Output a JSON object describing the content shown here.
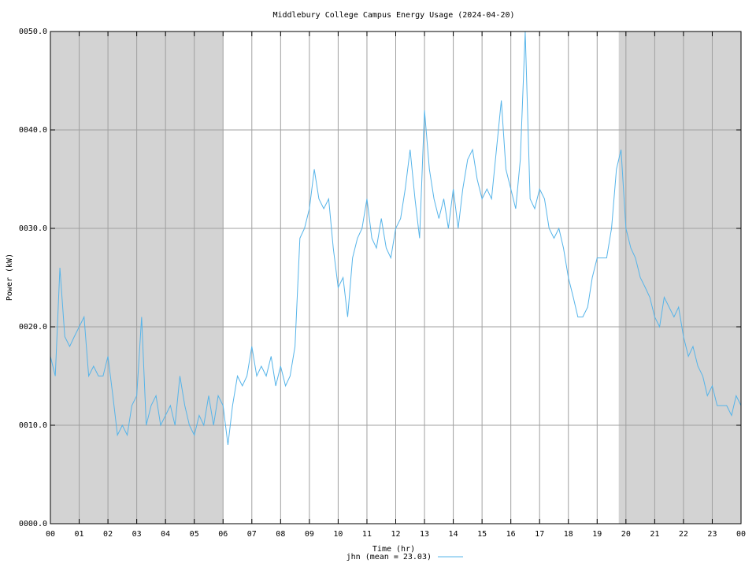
{
  "chart_data": {
    "type": "line",
    "title": "Middlebury College Campus Energy Usage (2024-04-20)",
    "x_label": "Time (hr)",
    "y_label": "Power (kW)",
    "xlim": [
      0,
      24
    ],
    "ylim": [
      0,
      50
    ],
    "xticks": [
      {
        "value": 0,
        "label": "00"
      },
      {
        "value": 1,
        "label": "01"
      },
      {
        "value": 2,
        "label": "02"
      },
      {
        "value": 3,
        "label": "03"
      },
      {
        "value": 4,
        "label": "04"
      },
      {
        "value": 5,
        "label": "05"
      },
      {
        "value": 6,
        "label": "06"
      },
      {
        "value": 7,
        "label": "07"
      },
      {
        "value": 8,
        "label": "08"
      },
      {
        "value": 9,
        "label": "09"
      },
      {
        "value": 10,
        "label": "10"
      },
      {
        "value": 11,
        "label": "11"
      },
      {
        "value": 12,
        "label": "12"
      },
      {
        "value": 13,
        "label": "13"
      },
      {
        "value": 14,
        "label": "14"
      },
      {
        "value": 15,
        "label": "15"
      },
      {
        "value": 16,
        "label": "16"
      },
      {
        "value": 17,
        "label": "17"
      },
      {
        "value": 18,
        "label": "18"
      },
      {
        "value": 19,
        "label": "19"
      },
      {
        "value": 20,
        "label": "20"
      },
      {
        "value": 21,
        "label": "21"
      },
      {
        "value": 22,
        "label": "22"
      },
      {
        "value": 23,
        "label": "23"
      },
      {
        "value": 24,
        "label": "00"
      }
    ],
    "yticks": [
      {
        "value": 0,
        "label": "0000.0"
      },
      {
        "value": 10,
        "label": "0010.0"
      },
      {
        "value": 20,
        "label": "0020.0"
      },
      {
        "value": 30,
        "label": "0030.0"
      },
      {
        "value": 40,
        "label": "0040.0"
      },
      {
        "value": 50,
        "label": "0050.0"
      }
    ],
    "grid": true,
    "grid_color": "#a0a0a0",
    "shade_color": "#d3d3d3",
    "shaded_ranges": [
      [
        0,
        6
      ],
      [
        19.75,
        24
      ]
    ],
    "legend": "bottom",
    "x": [
      0,
      0.17,
      0.33,
      0.5,
      0.67,
      0.83,
      1,
      1.17,
      1.33,
      1.5,
      1.67,
      1.83,
      2,
      2.17,
      2.33,
      2.5,
      2.67,
      2.83,
      3,
      3.17,
      3.33,
      3.5,
      3.67,
      3.83,
      4,
      4.17,
      4.33,
      4.5,
      4.67,
      4.83,
      5,
      5.17,
      5.33,
      5.5,
      5.67,
      5.83,
      6,
      6.17,
      6.33,
      6.5,
      6.67,
      6.83,
      7,
      7.17,
      7.33,
      7.5,
      7.67,
      7.83,
      8,
      8.17,
      8.33,
      8.5,
      8.67,
      8.83,
      9,
      9.17,
      9.33,
      9.5,
      9.67,
      9.83,
      10,
      10.17,
      10.33,
      10.5,
      10.67,
      10.83,
      11,
      11.17,
      11.33,
      11.5,
      11.67,
      11.83,
      12,
      12.17,
      12.33,
      12.5,
      12.67,
      12.83,
      13,
      13.17,
      13.33,
      13.5,
      13.67,
      13.83,
      14,
      14.17,
      14.33,
      14.5,
      14.67,
      14.83,
      15,
      15.17,
      15.33,
      15.5,
      15.67,
      15.83,
      16,
      16.17,
      16.33,
      16.5,
      16.67,
      16.83,
      17,
      17.17,
      17.33,
      17.5,
      17.67,
      17.83,
      18,
      18.17,
      18.33,
      18.5,
      18.67,
      18.83,
      19,
      19.17,
      19.33,
      19.5,
      19.67,
      19.83,
      20,
      20.17,
      20.33,
      20.5,
      20.67,
      20.83,
      21,
      21.17,
      21.33,
      21.5,
      21.67,
      21.83,
      22,
      22.17,
      22.33,
      22.5,
      22.67,
      22.83,
      23,
      23.17,
      23.33,
      23.5,
      23.67,
      23.83,
      24
    ],
    "series": [
      {
        "name": "jhn (mean = 23.03)",
        "color": "#56b4e9",
        "values": [
          17,
          15,
          26,
          19,
          18,
          19,
          20,
          21,
          15,
          16,
          15,
          15,
          17,
          13,
          9,
          10,
          9,
          12,
          13,
          21,
          10,
          12,
          13,
          10,
          11,
          12,
          10,
          15,
          12,
          10,
          9,
          11,
          10,
          13,
          10,
          13,
          12,
          8,
          12,
          15,
          14,
          15,
          18,
          15,
          16,
          15,
          17,
          14,
          16,
          14,
          15,
          18,
          29,
          30,
          32,
          36,
          33,
          32,
          33,
          28,
          24,
          25,
          21,
          27,
          29,
          30,
          33,
          29,
          28,
          31,
          28,
          27,
          30,
          31,
          34,
          38,
          33,
          29,
          42,
          36,
          33,
          31,
          33,
          30,
          34,
          30,
          34,
          37,
          38,
          35,
          33,
          34,
          33,
          38,
          43,
          36,
          34,
          32,
          37,
          50,
          33,
          32,
          34,
          33,
          30,
          29,
          30,
          28,
          25,
          23,
          21,
          21,
          22,
          25,
          27,
          27,
          27,
          30,
          36,
          38,
          30,
          28,
          27,
          25,
          24,
          23,
          21,
          20,
          23,
          22,
          21,
          22,
          19,
          17,
          18,
          16,
          15,
          13,
          14,
          12,
          12,
          12,
          11,
          13,
          12
        ]
      }
    ]
  }
}
